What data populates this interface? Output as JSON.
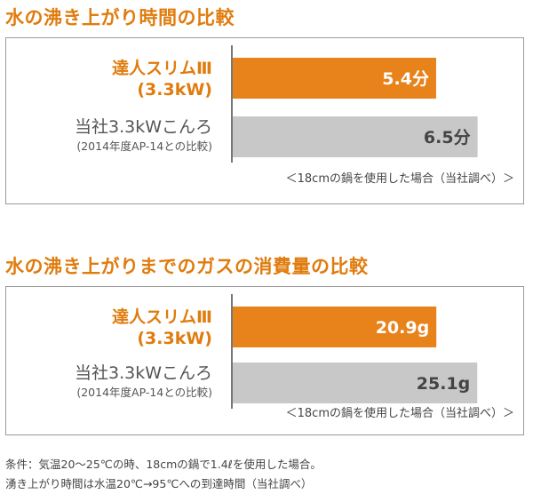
{
  "chart_data": [
    {
      "type": "bar",
      "orientation": "horizontal",
      "title": "水の沸き上がり時間の比較",
      "unit": "分",
      "categories": [
        {
          "line1": "達人スリムⅢ",
          "line2": "(3.3kW)",
          "color": "#e8821a",
          "text_color": "#e07c0e"
        },
        {
          "line1": "当社3.3kWこんろ",
          "line2": "(2014年度AP-14との比較)",
          "color": "#c8c8c8",
          "text_color": "#555555"
        }
      ],
      "values": [
        5.4,
        6.5
      ],
      "value_labels": [
        "5.4分",
        "6.5分"
      ],
      "footnote": "＜18cmの鍋を使用した場合（当社調べ）＞",
      "xlim": [
        0,
        7.5
      ],
      "grid": false
    },
    {
      "type": "bar",
      "orientation": "horizontal",
      "title": "水の沸き上がりまでのガスの消費量の比較",
      "unit": "g",
      "categories": [
        {
          "line1": "達人スリムⅢ",
          "line2": "(3.3kW)",
          "color": "#e8821a",
          "text_color": "#e07c0e"
        },
        {
          "line1": "当社3.3kWこんろ",
          "line2": "(2014年度AP-14との比較)",
          "color": "#c8c8c8",
          "text_color": "#555555"
        }
      ],
      "values": [
        20.9,
        25.1
      ],
      "value_labels": [
        "20.9g",
        "25.1g"
      ],
      "footnote": "＜18cmの鍋を使用した場合（当社調べ）＞",
      "xlim": [
        0,
        29
      ],
      "grid": false
    }
  ],
  "notes": [
    "条件：気温20～25℃の時、18cmの鍋で1.4ℓを使用した場合。",
    "湧き上がり時間は水温20℃→95℃への到達時間（当社調べ）"
  ]
}
